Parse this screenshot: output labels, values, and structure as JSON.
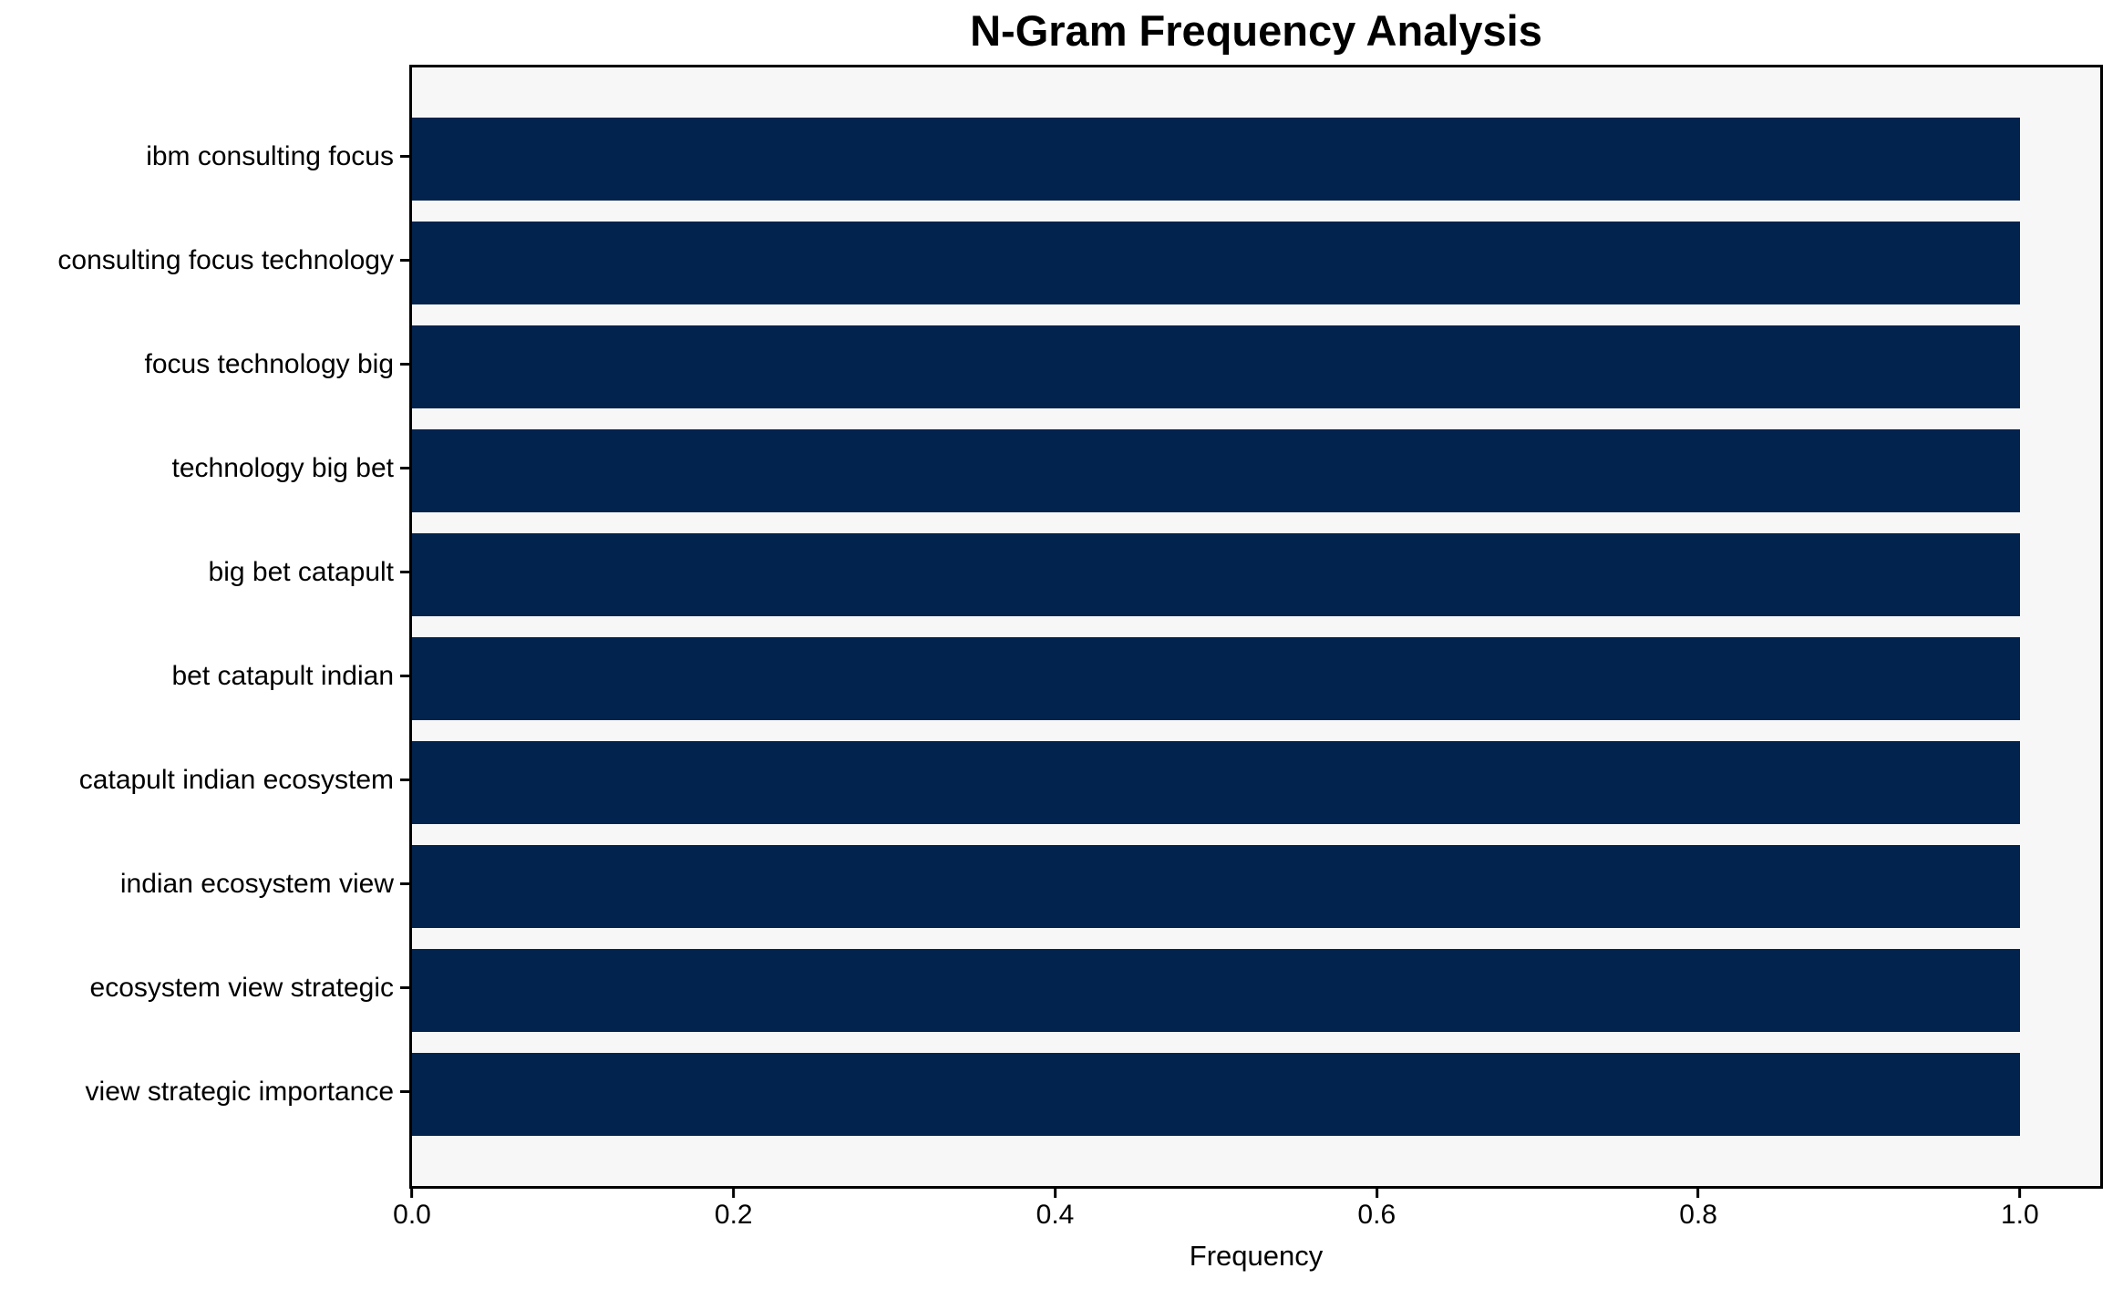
{
  "chart_data": {
    "type": "bar",
    "orientation": "horizontal",
    "title": "N-Gram Frequency Analysis",
    "xlabel": "Frequency",
    "ylabel": "",
    "categories": [
      "ibm consulting focus",
      "consulting focus technology",
      "focus technology big",
      "technology big bet",
      "big bet catapult",
      "bet catapult indian",
      "catapult indian ecosystem",
      "indian ecosystem view",
      "ecosystem view strategic",
      "view strategic importance"
    ],
    "values": [
      1.0,
      1.0,
      1.0,
      1.0,
      1.0,
      1.0,
      1.0,
      1.0,
      1.0,
      1.0
    ],
    "xlim": [
      0,
      1.05
    ],
    "xticks": [
      0.0,
      0.2,
      0.4,
      0.6,
      0.8,
      1.0
    ],
    "grid": false,
    "legend_position": "none",
    "bar_color": "#02234d",
    "plot_background": "#f7f7f7",
    "figure_background": "#ffffff",
    "spine_color": "#000000"
  }
}
